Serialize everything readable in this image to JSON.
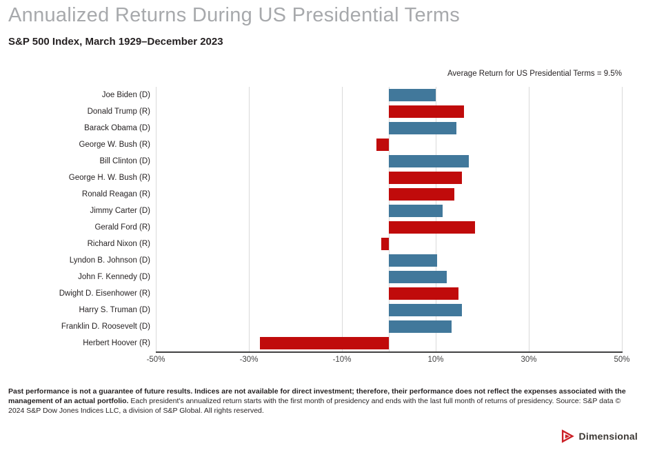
{
  "header": {
    "title": "Annualized Returns During US Presidential Terms",
    "subtitle": "S&P 500 Index, March 1929–December 2023"
  },
  "annotation": {
    "text": "Average Return for US Presidential Terms = 9.5%"
  },
  "chart_data": {
    "type": "bar",
    "orientation": "horizontal",
    "title": "Annualized Returns During US Presidential Terms",
    "subtitle": "S&P 500 Index, March 1929–December 2023",
    "average_return_note": "Average Return for US Presidential Terms = 9.5%",
    "average_return_pct": 9.5,
    "xlim": [
      -50,
      50
    ],
    "x_ticks": [
      -50,
      -30,
      -10,
      10,
      30,
      50
    ],
    "x_tick_labels": [
      "-50%",
      "-30%",
      "-10%",
      "10%",
      "30%",
      "50%"
    ],
    "grid": true,
    "zero_line": true,
    "legend": "none",
    "categories": [
      "Joe Biden (D)",
      "Donald Trump (R)",
      "Barack Obama (D)",
      "George W. Bush (R)",
      "Bill Clinton (D)",
      "George H. W. Bush (R)",
      "Ronald Reagan (R)",
      "Jimmy Carter (D)",
      "Gerald Ford (R)",
      "Richard Nixon (R)",
      "Lyndon B. Johnson (D)",
      "John F. Kennedy (D)",
      "Dwight D. Eisenhower (R)",
      "Harry S. Truman (D)",
      "Franklin D. Roosevelt (D)",
      "Herbert Hoover (R)"
    ],
    "parties": [
      "D",
      "R",
      "D",
      "R",
      "D",
      "R",
      "R",
      "D",
      "R",
      "R",
      "D",
      "D",
      "R",
      "D",
      "D",
      "R"
    ],
    "values": [
      10.0,
      16.1,
      14.5,
      -2.7,
      17.2,
      15.6,
      14.1,
      11.6,
      18.5,
      -1.6,
      10.4,
      12.4,
      14.9,
      15.7,
      13.5,
      -27.6
    ],
    "colors": {
      "democrat_bar": "#41789B",
      "republican_bar": "#C00B0B",
      "gridline": "#D9D9D9",
      "axis_line": "#404041",
      "title_gray": "#A7A9AC"
    }
  },
  "footer": {
    "bold": "Past performance is not a guarantee of future results. Indices are not available for direct investment; therefore, their performance does not reflect the expenses associated with the management of an actual portfolio.",
    "regular": " Each president's annualized return starts with the first month of presidency and ends with the last full month of returns of presidency. Source: S&P data © 2024 S&P Dow Jones Indices LLC, a division of S&P Global. All rights reserved."
  },
  "logo": {
    "text": "Dimensional",
    "icon_color": "#CB2026"
  }
}
